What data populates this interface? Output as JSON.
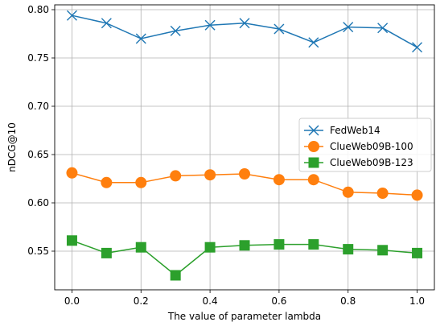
{
  "chart_data": {
    "type": "line",
    "title": "",
    "xlabel": "The value of parameter lambda",
    "ylabel": "nDCG@10",
    "x": [
      0.0,
      0.1,
      0.2,
      0.3,
      0.4,
      0.5,
      0.6,
      0.7,
      0.8,
      0.9,
      1.0
    ],
    "xlim": [
      -0.05,
      1.05
    ],
    "ylim": [
      0.51,
      0.805
    ],
    "xticks": [
      0.0,
      0.2,
      0.4,
      0.6,
      0.8,
      1.0
    ],
    "xtick_labels": [
      "0.0",
      "0.2",
      "0.4",
      "0.6",
      "0.8",
      "1.0"
    ],
    "yticks": [
      0.55,
      0.6,
      0.65,
      0.7,
      0.75,
      0.8
    ],
    "ytick_labels": [
      "0.55",
      "0.60",
      "0.65",
      "0.70",
      "0.75",
      "0.80"
    ],
    "grid": true,
    "legend_position": "center-right",
    "series": [
      {
        "name": "FedWeb14",
        "color": "#1f77b4",
        "marker": "x",
        "values": [
          0.794,
          0.786,
          0.77,
          0.778,
          0.784,
          0.786,
          0.78,
          0.766,
          0.782,
          0.781,
          0.761
        ]
      },
      {
        "name": "ClueWeb09B-100",
        "color": "#ff7f0e",
        "marker": "circle",
        "values": [
          0.631,
          0.621,
          0.621,
          0.628,
          0.629,
          0.63,
          0.624,
          0.624,
          0.611,
          0.61,
          0.608
        ]
      },
      {
        "name": "ClueWeb09B-123",
        "color": "#2ca02c",
        "marker": "square",
        "values": [
          0.561,
          0.548,
          0.554,
          0.525,
          0.554,
          0.556,
          0.557,
          0.557,
          0.552,
          0.551,
          0.548
        ]
      }
    ]
  }
}
